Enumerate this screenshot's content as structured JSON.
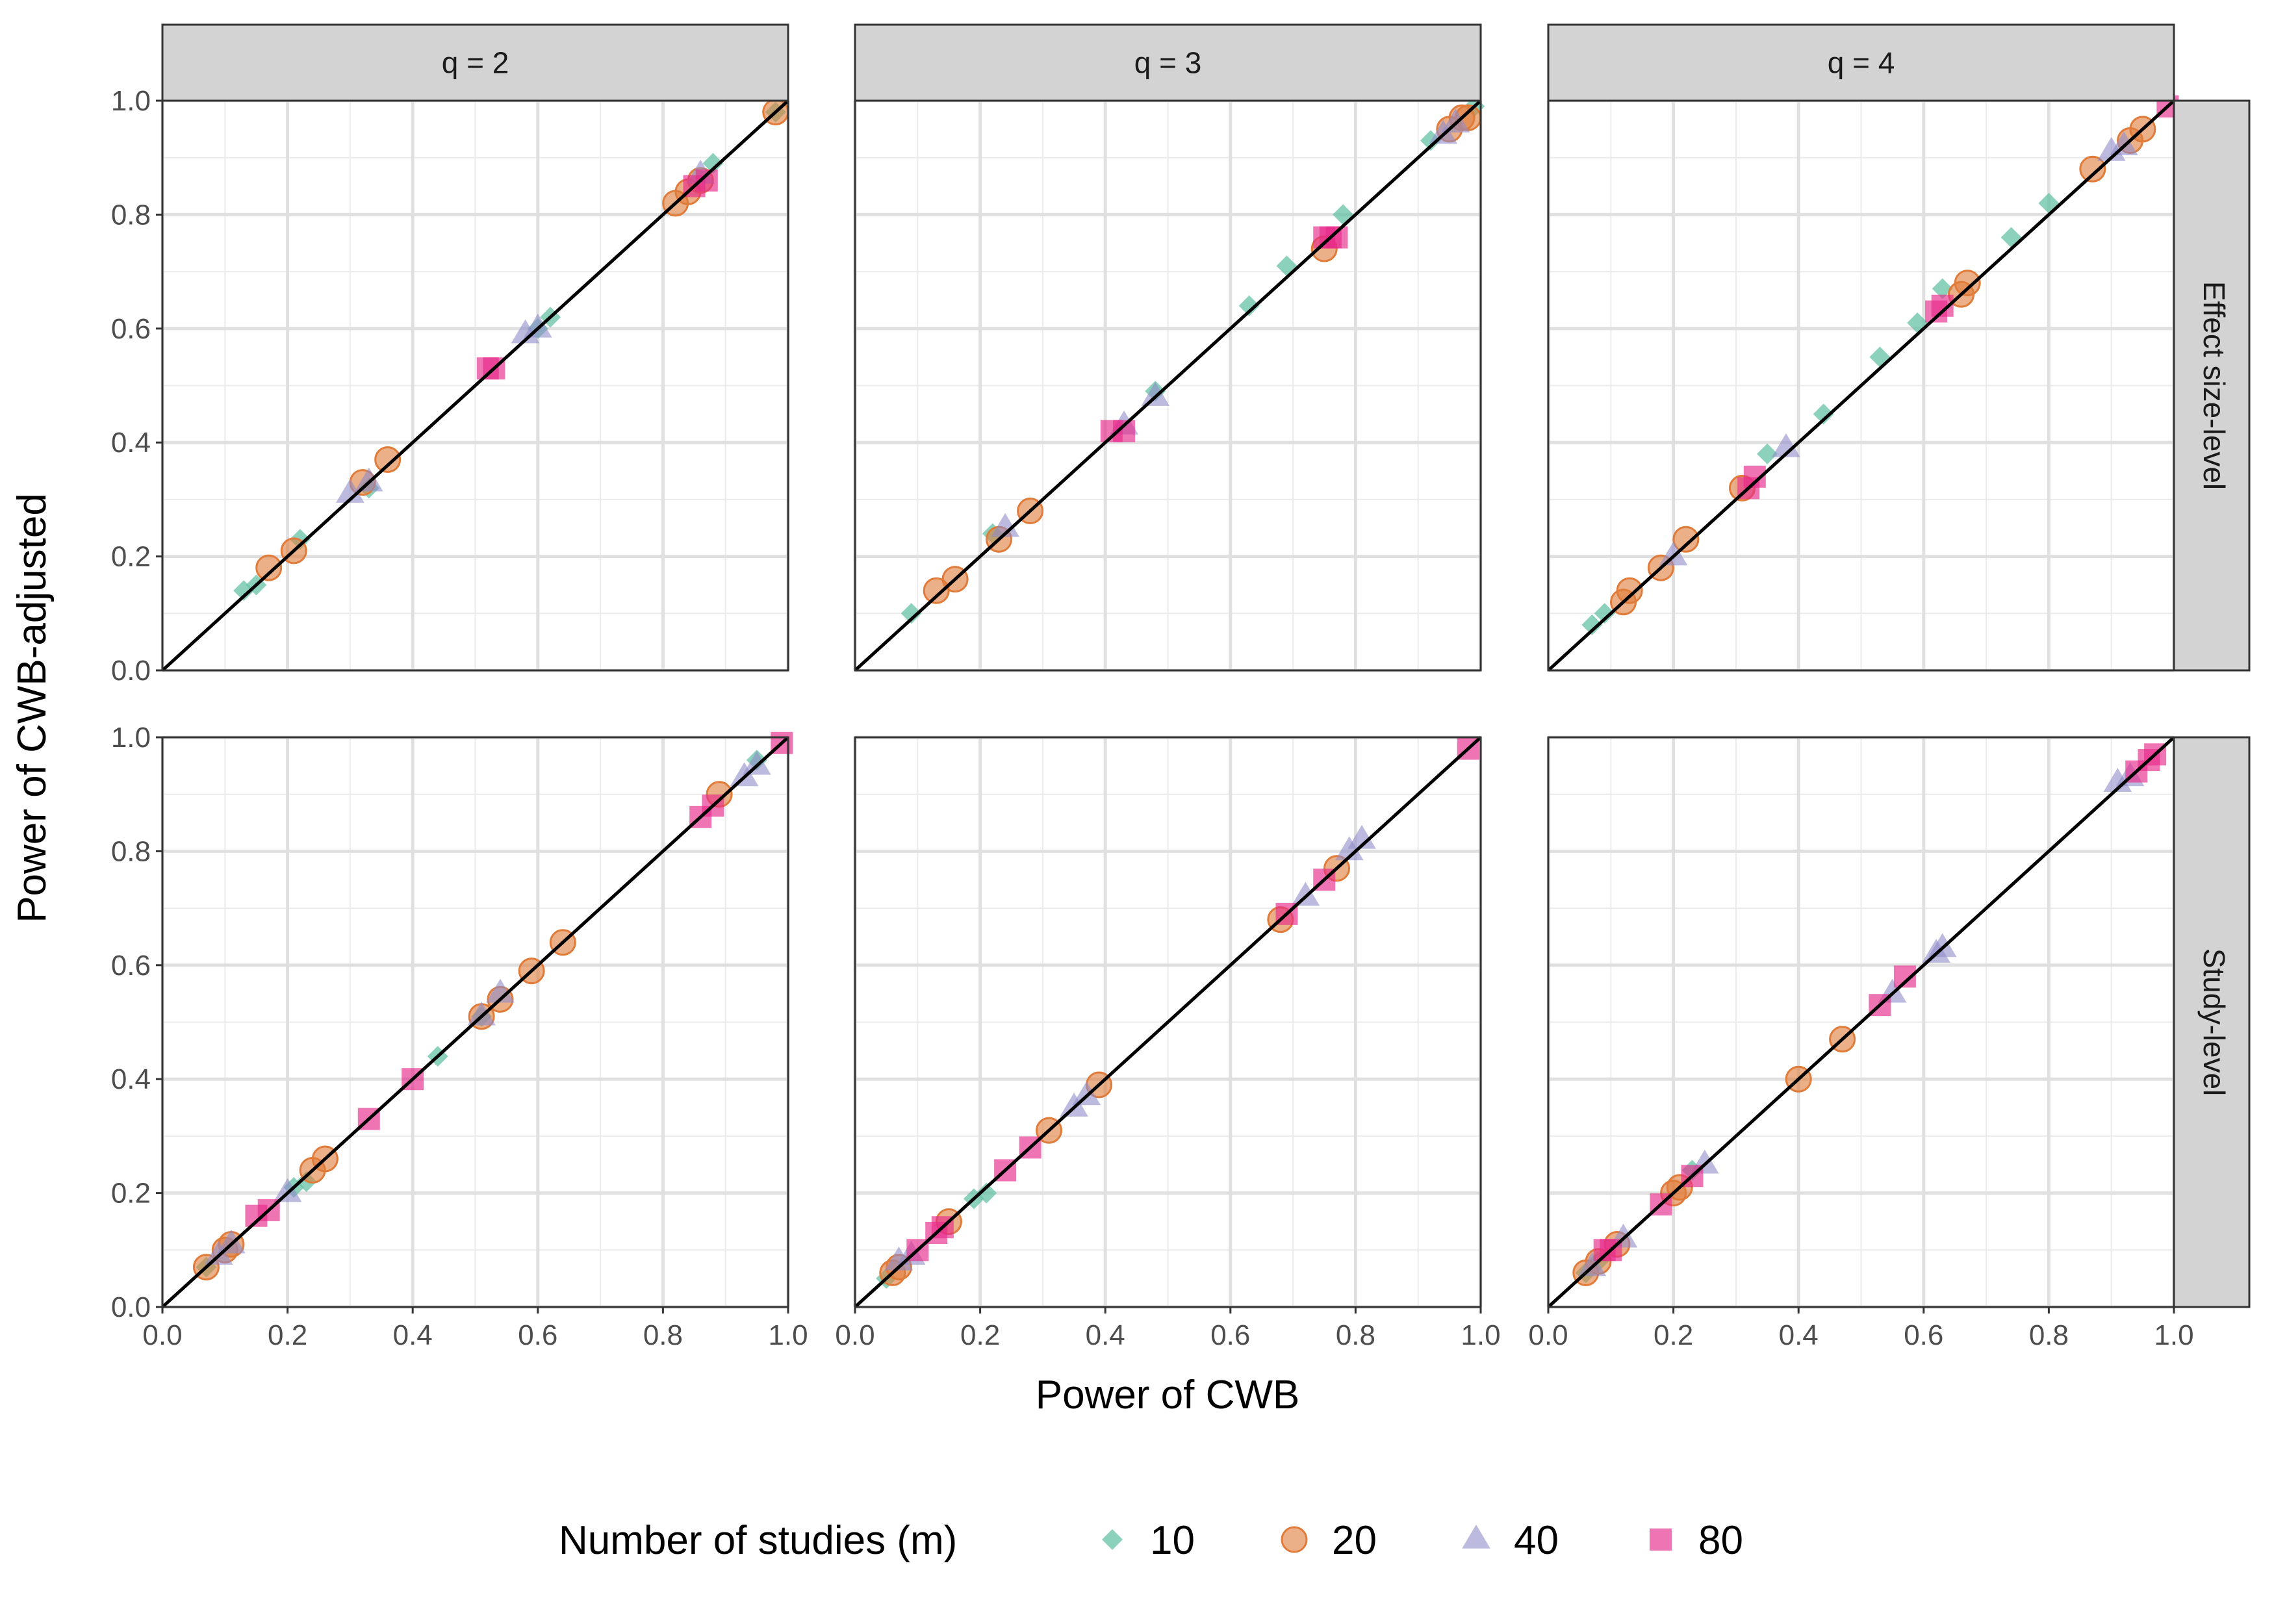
{
  "chart_data": {
    "type": "scatter",
    "xlabel": "Power of CWB",
    "ylabel": "Power of CWB-adjusted",
    "xlim": [
      0,
      1
    ],
    "ylim": [
      0,
      1
    ],
    "x_ticks": [
      "0.0",
      "0.2",
      "0.4",
      "0.6",
      "0.8",
      "1.0"
    ],
    "y_ticks": [
      "0.0",
      "0.2",
      "0.4",
      "0.6",
      "0.8",
      "1.0"
    ],
    "grid": true,
    "reference_line": "y = x",
    "column_strips": [
      "q = 2",
      "q = 3",
      "q = 4"
    ],
    "row_strips": [
      "Effect size-level",
      "Study-level"
    ],
    "legend": {
      "title": "Number of studies (m)",
      "position": "bottom",
      "entries": [
        {
          "label": "10",
          "shape": "diamond",
          "color": "#66c2a5"
        },
        {
          "label": "20",
          "shape": "circle",
          "color": "#e07b39"
        },
        {
          "label": "40",
          "shape": "triangle",
          "color": "#8f8cc9"
        },
        {
          "label": "80",
          "shape": "square",
          "color": "#e7298a"
        }
      ]
    },
    "panels": [
      {
        "row": 0,
        "col": 0,
        "series": [
          {
            "name": "10",
            "points": [
              [
                0.13,
                0.14
              ],
              [
                0.15,
                0.15
              ],
              [
                0.22,
                0.23
              ],
              [
                0.33,
                0.32
              ],
              [
                0.6,
                0.6
              ],
              [
                0.62,
                0.62
              ],
              [
                0.88,
                0.89
              ],
              [
                0.98,
                0.98
              ]
            ]
          },
          {
            "name": "20",
            "points": [
              [
                0.17,
                0.18
              ],
              [
                0.21,
                0.21
              ],
              [
                0.32,
                0.33
              ],
              [
                0.36,
                0.37
              ],
              [
                0.82,
                0.82
              ],
              [
                0.84,
                0.84
              ],
              [
                0.86,
                0.86
              ],
              [
                0.98,
                0.98
              ]
            ]
          },
          {
            "name": "40",
            "points": [
              [
                0.3,
                0.31
              ],
              [
                0.33,
                0.33
              ],
              [
                0.58,
                0.59
              ],
              [
                0.6,
                0.6
              ],
              [
                0.86,
                0.87
              ]
            ]
          },
          {
            "name": "80",
            "points": [
              [
                0.52,
                0.53
              ],
              [
                0.53,
                0.53
              ],
              [
                0.85,
                0.85
              ],
              [
                0.87,
                0.86
              ]
            ]
          }
        ]
      },
      {
        "row": 0,
        "col": 1,
        "series": [
          {
            "name": "10",
            "points": [
              [
                0.09,
                0.1
              ],
              [
                0.22,
                0.24
              ],
              [
                0.48,
                0.49
              ],
              [
                0.63,
                0.64
              ],
              [
                0.69,
                0.71
              ],
              [
                0.78,
                0.8
              ],
              [
                0.92,
                0.93
              ],
              [
                0.99,
                0.99
              ]
            ]
          },
          {
            "name": "20",
            "points": [
              [
                0.13,
                0.14
              ],
              [
                0.16,
                0.16
              ],
              [
                0.23,
                0.23
              ],
              [
                0.28,
                0.28
              ],
              [
                0.75,
                0.74
              ],
              [
                0.95,
                0.95
              ],
              [
                0.97,
                0.97
              ],
              [
                0.98,
                0.97
              ]
            ]
          },
          {
            "name": "40",
            "points": [
              [
                0.24,
                0.25
              ],
              [
                0.43,
                0.43
              ],
              [
                0.48,
                0.48
              ],
              [
                0.94,
                0.94
              ],
              [
                0.96,
                0.96
              ]
            ]
          },
          {
            "name": "80",
            "points": [
              [
                0.41,
                0.42
              ],
              [
                0.43,
                0.42
              ],
              [
                0.75,
                0.76
              ],
              [
                0.76,
                0.76
              ],
              [
                0.77,
                0.76
              ]
            ]
          }
        ]
      },
      {
        "row": 0,
        "col": 2,
        "series": [
          {
            "name": "10",
            "points": [
              [
                0.07,
                0.08
              ],
              [
                0.09,
                0.1
              ],
              [
                0.35,
                0.38
              ],
              [
                0.44,
                0.45
              ],
              [
                0.53,
                0.55
              ],
              [
                0.59,
                0.61
              ],
              [
                0.63,
                0.67
              ],
              [
                0.74,
                0.76
              ],
              [
                0.8,
                0.82
              ]
            ]
          },
          {
            "name": "20",
            "points": [
              [
                0.12,
                0.12
              ],
              [
                0.13,
                0.14
              ],
              [
                0.18,
                0.18
              ],
              [
                0.22,
                0.23
              ],
              [
                0.31,
                0.32
              ],
              [
                0.66,
                0.66
              ],
              [
                0.67,
                0.68
              ],
              [
                0.87,
                0.88
              ],
              [
                0.93,
                0.93
              ],
              [
                0.95,
                0.95
              ]
            ]
          },
          {
            "name": "40",
            "points": [
              [
                0.2,
                0.2
              ],
              [
                0.38,
                0.39
              ],
              [
                0.9,
                0.91
              ],
              [
                0.92,
                0.92
              ]
            ]
          },
          {
            "name": "80",
            "points": [
              [
                0.32,
                0.32
              ],
              [
                0.33,
                0.34
              ],
              [
                0.62,
                0.63
              ],
              [
                0.63,
                0.64
              ],
              [
                0.99,
                0.99
              ]
            ]
          }
        ]
      },
      {
        "row": 1,
        "col": 0,
        "series": [
          {
            "name": "10",
            "points": [
              [
                0.07,
                0.07
              ],
              [
                0.21,
                0.21
              ],
              [
                0.23,
                0.22
              ],
              [
                0.44,
                0.44
              ],
              [
                0.51,
                0.51
              ],
              [
                0.95,
                0.96
              ]
            ]
          },
          {
            "name": "20",
            "points": [
              [
                0.07,
                0.07
              ],
              [
                0.1,
                0.1
              ],
              [
                0.11,
                0.11
              ],
              [
                0.24,
                0.24
              ],
              [
                0.26,
                0.26
              ],
              [
                0.51,
                0.51
              ],
              [
                0.54,
                0.54
              ],
              [
                0.59,
                0.59
              ],
              [
                0.64,
                0.64
              ],
              [
                0.89,
                0.9
              ]
            ]
          },
          {
            "name": "40",
            "points": [
              [
                0.09,
                0.09
              ],
              [
                0.11,
                0.11
              ],
              [
                0.2,
                0.2
              ],
              [
                0.51,
                0.51
              ],
              [
                0.54,
                0.55
              ],
              [
                0.93,
                0.93
              ],
              [
                0.95,
                0.95
              ]
            ]
          },
          {
            "name": "80",
            "points": [
              [
                0.15,
                0.16
              ],
              [
                0.17,
                0.17
              ],
              [
                0.33,
                0.33
              ],
              [
                0.4,
                0.4
              ],
              [
                0.86,
                0.86
              ],
              [
                0.88,
                0.88
              ],
              [
                0.99,
                0.99
              ]
            ]
          }
        ]
      },
      {
        "row": 1,
        "col": 1,
        "series": [
          {
            "name": "10",
            "points": [
              [
                0.05,
                0.05
              ],
              [
                0.19,
                0.19
              ],
              [
                0.21,
                0.2
              ]
            ]
          },
          {
            "name": "20",
            "points": [
              [
                0.06,
                0.06
              ],
              [
                0.07,
                0.07
              ],
              [
                0.15,
                0.15
              ],
              [
                0.31,
                0.31
              ],
              [
                0.39,
                0.39
              ],
              [
                0.68,
                0.68
              ],
              [
                0.77,
                0.77
              ]
            ]
          },
          {
            "name": "40",
            "points": [
              [
                0.07,
                0.08
              ],
              [
                0.09,
                0.09
              ],
              [
                0.35,
                0.35
              ],
              [
                0.37,
                0.37
              ],
              [
                0.72,
                0.72
              ],
              [
                0.79,
                0.8
              ],
              [
                0.81,
                0.82
              ]
            ]
          },
          {
            "name": "80",
            "points": [
              [
                0.1,
                0.1
              ],
              [
                0.13,
                0.13
              ],
              [
                0.14,
                0.14
              ],
              [
                0.24,
                0.24
              ],
              [
                0.28,
                0.28
              ],
              [
                0.69,
                0.69
              ],
              [
                0.75,
                0.75
              ],
              [
                0.98,
                0.98
              ]
            ]
          }
        ]
      },
      {
        "row": 1,
        "col": 2,
        "series": [
          {
            "name": "10",
            "points": [
              [
                0.06,
                0.06
              ],
              [
                0.08,
                0.08
              ],
              [
                0.23,
                0.24
              ]
            ]
          },
          {
            "name": "20",
            "points": [
              [
                0.06,
                0.06
              ],
              [
                0.08,
                0.08
              ],
              [
                0.11,
                0.11
              ],
              [
                0.2,
                0.2
              ],
              [
                0.21,
                0.21
              ],
              [
                0.4,
                0.4
              ],
              [
                0.47,
                0.47
              ]
            ]
          },
          {
            "name": "40",
            "points": [
              [
                0.07,
                0.07
              ],
              [
                0.12,
                0.12
              ],
              [
                0.25,
                0.25
              ],
              [
                0.55,
                0.55
              ],
              [
                0.62,
                0.62
              ],
              [
                0.63,
                0.63
              ],
              [
                0.91,
                0.92
              ],
              [
                0.93,
                0.93
              ]
            ]
          },
          {
            "name": "80",
            "points": [
              [
                0.09,
                0.1
              ],
              [
                0.1,
                0.1
              ],
              [
                0.18,
                0.18
              ],
              [
                0.23,
                0.23
              ],
              [
                0.53,
                0.53
              ],
              [
                0.57,
                0.58
              ],
              [
                0.94,
                0.94
              ],
              [
                0.96,
                0.96
              ],
              [
                0.97,
                0.97
              ]
            ]
          }
        ]
      }
    ]
  }
}
